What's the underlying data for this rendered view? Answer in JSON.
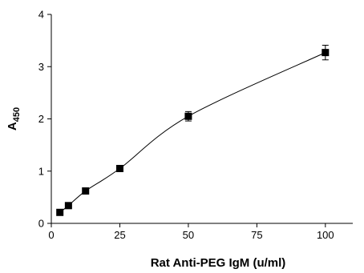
{
  "chart_data": {
    "type": "scatter",
    "title": "",
    "xlabel": "Rat Anti-PEG IgM (u/ml)",
    "ylabel": {
      "main": "A",
      "sub": "450"
    },
    "xlim": [
      0,
      110
    ],
    "ylim": [
      0,
      4
    ],
    "x_ticks": [
      0,
      25,
      50,
      75,
      100
    ],
    "y_ticks": [
      0,
      1,
      2,
      3,
      4
    ],
    "grid": false,
    "fit_curve": true,
    "series": [
      {
        "points": [
          {
            "x": 3.125,
            "y": 0.21,
            "err": 0.03
          },
          {
            "x": 6.25,
            "y": 0.34,
            "err": 0.03
          },
          {
            "x": 12.5,
            "y": 0.62,
            "err": 0.03
          },
          {
            "x": 25,
            "y": 1.05,
            "err": 0.04
          },
          {
            "x": 50,
            "y": 2.05,
            "err": 0.09
          },
          {
            "x": 100,
            "y": 3.27,
            "err": 0.14
          }
        ]
      }
    ]
  }
}
